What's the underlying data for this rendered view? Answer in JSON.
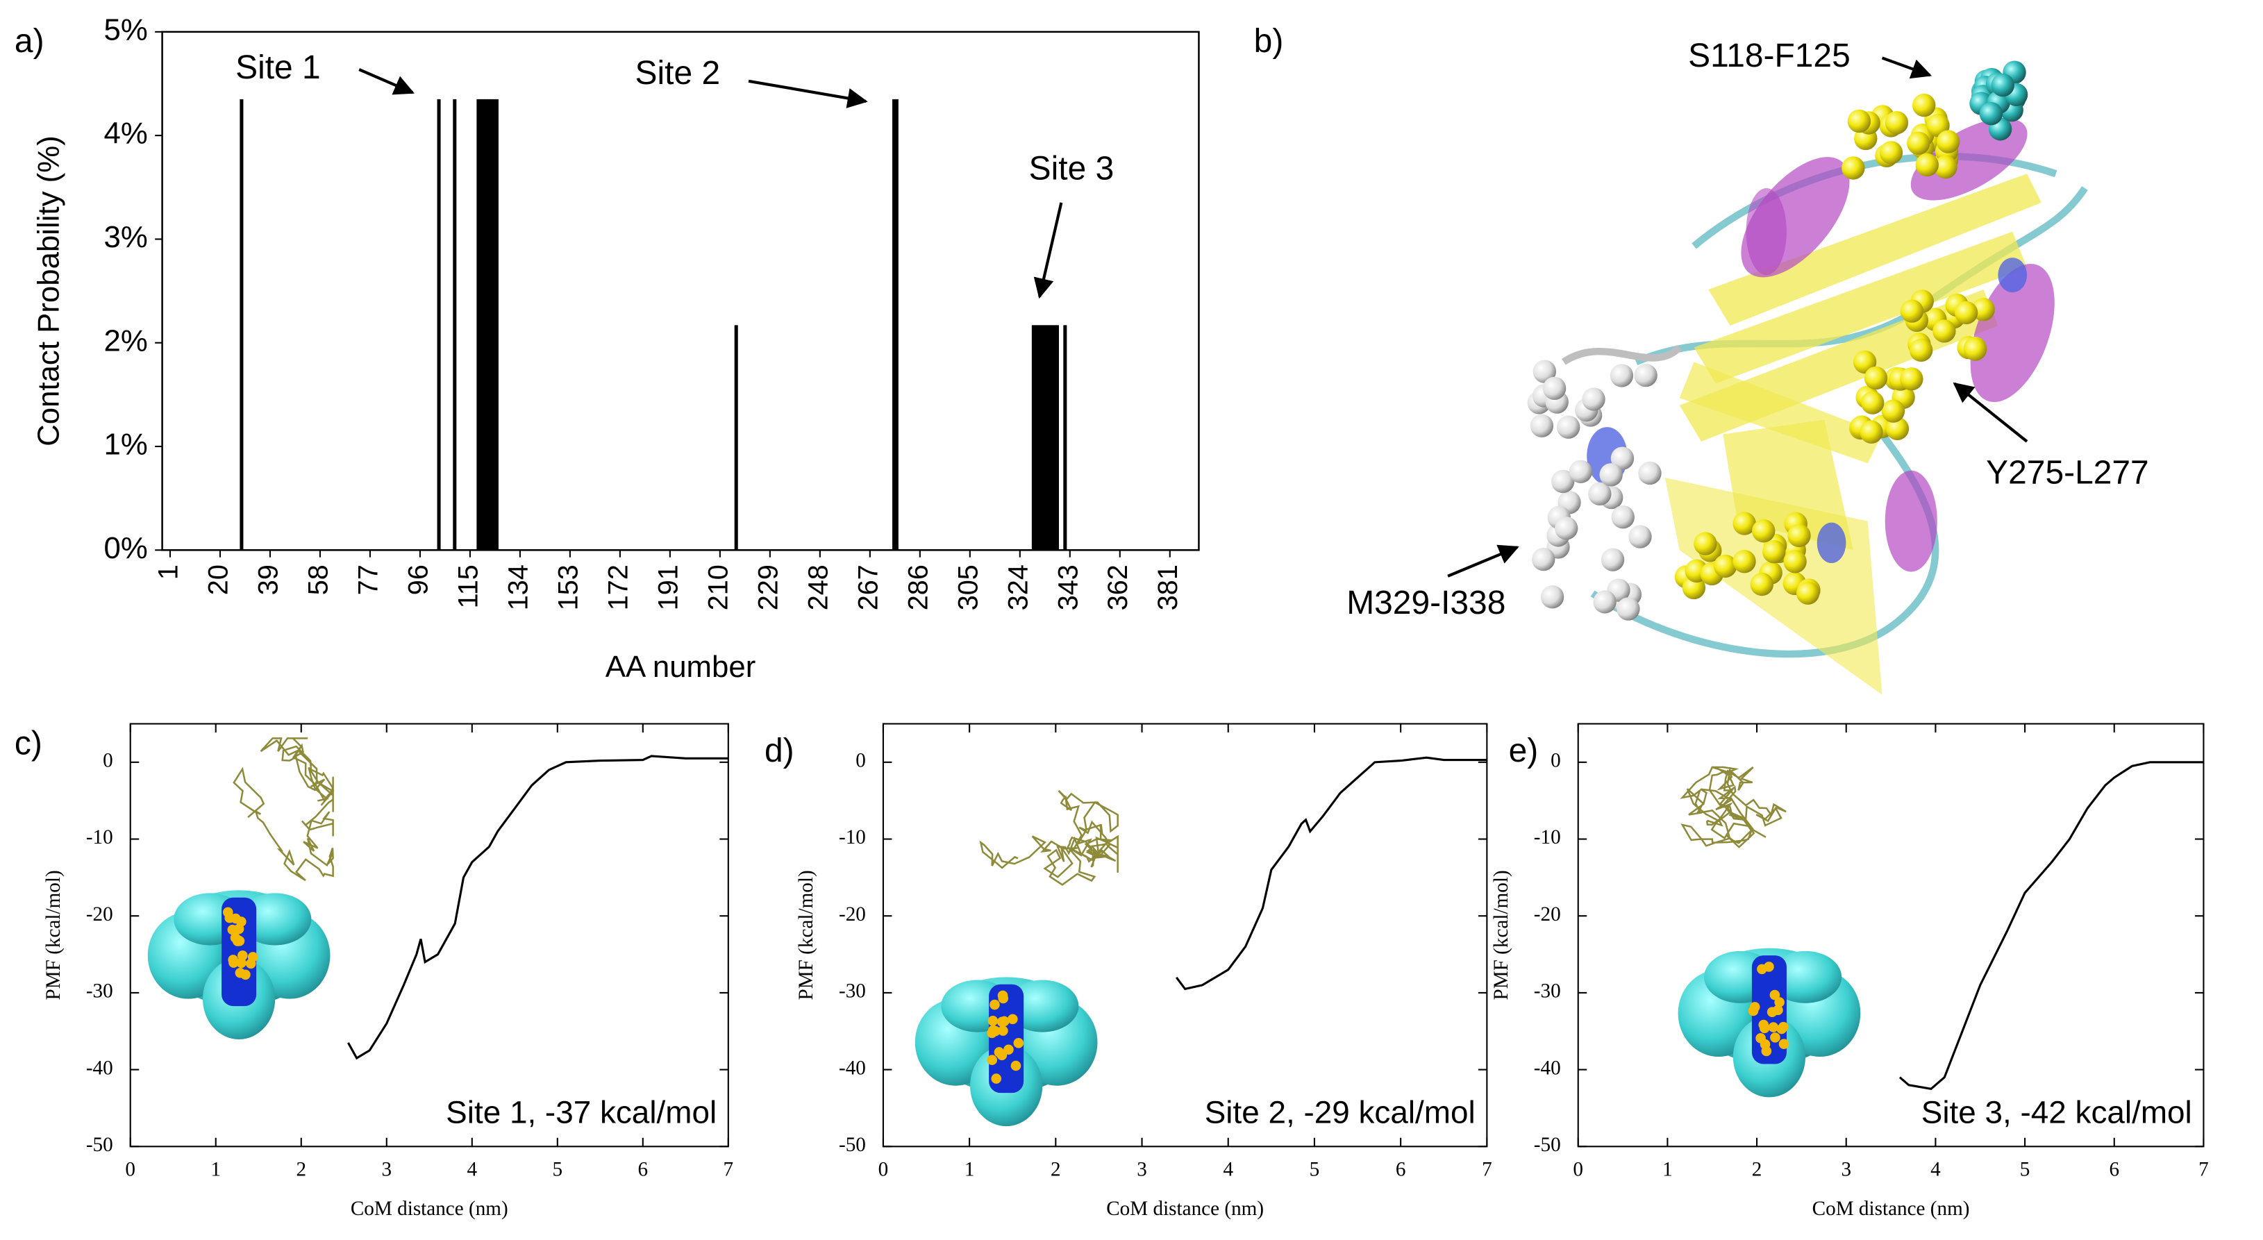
{
  "chart_data": [
    {
      "type": "bar",
      "label": "a)",
      "xlabel": "AA number",
      "ylabel": "Contact Probability (%)",
      "x": [
        28,
        103,
        109,
        118,
        119,
        120,
        121,
        122,
        123,
        124,
        125,
        216,
        276,
        277,
        329,
        330,
        331,
        332,
        333,
        334,
        335,
        336,
        337,
        338,
        341
      ],
      "values": [
        4.35,
        4.35,
        4.35,
        4.35,
        4.35,
        4.35,
        4.35,
        4.35,
        4.35,
        4.35,
        4.35,
        2.17,
        4.35,
        4.35,
        2.17,
        2.17,
        2.17,
        2.17,
        2.17,
        2.17,
        2.17,
        2.17,
        2.17,
        2.17,
        2.17
      ],
      "color": "#000000",
      "xlim": [
        -2,
        392
      ],
      "ylim": [
        0,
        5
      ],
      "xticks": [
        1,
        20,
        39,
        58,
        77,
        96,
        115,
        134,
        153,
        172,
        191,
        210,
        229,
        248,
        267,
        286,
        305,
        324,
        343,
        362,
        381
      ],
      "yticks": [
        {
          "value": 0,
          "label": "0%"
        },
        {
          "value": 1,
          "label": "1%"
        },
        {
          "value": 2,
          "label": "2%"
        },
        {
          "value": 3,
          "label": "3%"
        },
        {
          "value": 4,
          "label": "4%"
        },
        {
          "value": 5,
          "label": "5%"
        }
      ],
      "annotations": [
        "Site 1",
        "Site 2",
        "Site 3"
      ]
    },
    {
      "type": "image",
      "label": "b)",
      "annotations": [
        "S118-F125",
        "Y275-L277",
        "M329-I338"
      ]
    },
    {
      "type": "line",
      "label": "c)",
      "xlabel": "CoM distance (nm)",
      "ylabel": "PMF (kcal/mol)",
      "color": "#000000",
      "x": [
        2.55,
        2.65,
        2.8,
        3.0,
        3.2,
        3.35,
        3.4,
        3.45,
        3.6,
        3.8,
        3.9,
        4.0,
        4.2,
        4.3,
        4.5,
        4.7,
        4.9,
        5.1,
        5.5,
        6.0,
        6.1,
        6.5,
        7.0
      ],
      "values": [
        -36.5,
        -38.5,
        -37.5,
        -34,
        -29,
        -25,
        -23,
        -26,
        -25,
        -21,
        -15,
        -13,
        -11,
        -9,
        -6,
        -3,
        -1,
        0,
        0.2,
        0.3,
        0.8,
        0.5,
        0.5
      ],
      "xlim": [
        0,
        7
      ],
      "ylim": [
        -50,
        5
      ],
      "xticks": [
        0,
        1,
        2,
        3,
        4,
        5,
        6,
        7
      ],
      "yticks": [
        0,
        -10,
        -20,
        -30,
        -40,
        -50
      ],
      "annotation": "Site 1, -37 kcal/mol"
    },
    {
      "type": "line",
      "label": "d)",
      "xlabel": "CoM distance (nm)",
      "ylabel": "PMF (kcal/mol)",
      "color": "#000000",
      "x": [
        3.4,
        3.5,
        3.7,
        4.0,
        4.2,
        4.4,
        4.5,
        4.7,
        4.85,
        4.9,
        4.95,
        5.1,
        5.3,
        5.5,
        5.7,
        6.0,
        6.3,
        6.5,
        7.0
      ],
      "values": [
        -28,
        -29.5,
        -29,
        -27,
        -24,
        -19,
        -14,
        -11,
        -8,
        -7.5,
        -9,
        -7,
        -4,
        -2,
        0,
        0.2,
        0.6,
        0.3,
        0.3
      ],
      "xlim": [
        0,
        7
      ],
      "ylim": [
        -50,
        5
      ],
      "xticks": [
        0,
        1,
        2,
        3,
        4,
        5,
        6,
        7
      ],
      "yticks": [
        0,
        -10,
        -20,
        -30,
        -40,
        -50
      ],
      "annotation": "Site 2, -29 kcal/mol"
    },
    {
      "type": "line",
      "label": "e)",
      "xlabel": "CoM distance (nm)",
      "ylabel": "PMF (kcal/mol)",
      "color": "#000000",
      "x": [
        3.6,
        3.7,
        3.95,
        4.1,
        4.3,
        4.5,
        4.8,
        5.0,
        5.3,
        5.5,
        5.7,
        5.9,
        6.0,
        6.2,
        6.4,
        6.7,
        7.0
      ],
      "values": [
        -41,
        -42,
        -42.5,
        -41,
        -35,
        -29,
        -22,
        -17,
        -13,
        -10,
        -6,
        -3,
        -2,
        -0.5,
        0,
        0,
        0
      ],
      "xlim": [
        0,
        7
      ],
      "ylim": [
        -50,
        5
      ],
      "xticks": [
        0,
        1,
        2,
        3,
        4,
        5,
        6,
        7
      ],
      "yticks": [
        0,
        -10,
        -20,
        -30,
        -40,
        -50
      ],
      "annotation": "Site 3, -42 kcal/mol"
    }
  ]
}
